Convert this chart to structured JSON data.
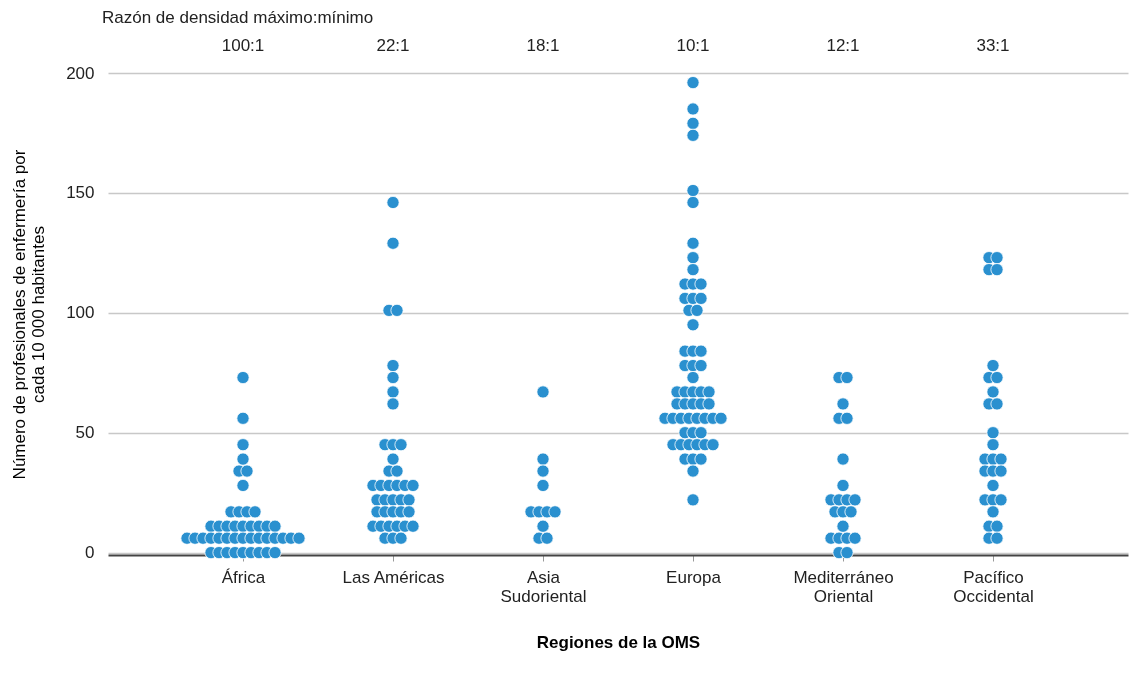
{
  "chart_data": {
    "type": "scatter",
    "xlabel": "Regiones de la OMS",
    "ylabel": "Número de profesionales de enfermería por cada 10 000 habitantes",
    "categories": [
      "África",
      "Las Américas",
      "Asia Sudoriental",
      "Europa",
      "Mediterráneo Oriental",
      "Pacífico Occidental"
    ],
    "ylim": [
      -1,
      200
    ],
    "yticks": [
      0,
      50,
      100,
      150,
      200
    ],
    "grid": "y",
    "legend": false,
    "marker": "circle",
    "annotations": [
      "Razón de densidad máximo:mínimo",
      "100:1",
      "22:1",
      "18:1",
      "10:1",
      "12:1",
      "33:1"
    ],
    "series": [
      {
        "color": "#2a90cf",
        "x": [
          "África",
          "África",
          "África",
          "África",
          "África",
          "África",
          "África",
          "África",
          "África",
          "África",
          "África",
          "África",
          "África",
          "África",
          "África",
          "África",
          "África",
          "África",
          "África",
          "África",
          "África",
          "África",
          "África",
          "África",
          "África",
          "África",
          "África",
          "África",
          "África",
          "África",
          "África",
          "África",
          "África",
          "África",
          "África",
          "África",
          "África",
          "África",
          "África",
          "África",
          "África",
          "África",
          "África",
          "África",
          "Las Américas",
          "Las Américas",
          "Las Américas",
          "Las Américas",
          "Las Américas",
          "Las Américas",
          "Las Américas",
          "Las Américas",
          "Las Américas",
          "Las Américas",
          "Las Américas",
          "Las Américas",
          "Las Américas",
          "Las Américas",
          "Las Américas",
          "Las Américas",
          "Las Américas",
          "Las Américas",
          "Las Américas",
          "Las Américas",
          "Las Américas",
          "Las Américas",
          "Las Américas",
          "Las Américas",
          "Las Américas",
          "Las Américas",
          "Las Américas",
          "Las Américas",
          "Las Américas",
          "Las Américas",
          "Las Américas",
          "Las Américas",
          "Las Américas",
          "Las Américas",
          "Las Américas",
          "Las Américas",
          "Las Américas",
          "Las Américas",
          "Las Américas",
          "Asia Sudoriental",
          "Asia Sudoriental",
          "Asia Sudoriental",
          "Asia Sudoriental",
          "Asia Sudoriental",
          "Asia Sudoriental",
          "Asia Sudoriental",
          "Asia Sudoriental",
          "Asia Sudoriental",
          "Asia Sudoriental",
          "Asia Sudoriental",
          "Europa",
          "Europa",
          "Europa",
          "Europa",
          "Europa",
          "Europa",
          "Europa",
          "Europa",
          "Europa",
          "Europa",
          "Europa",
          "Europa",
          "Europa",
          "Europa",
          "Europa",
          "Europa",
          "Europa",
          "Europa",
          "Europa",
          "Europa",
          "Europa",
          "Europa",
          "Europa",
          "Europa",
          "Europa",
          "Europa",
          "Europa",
          "Europa",
          "Europa",
          "Europa",
          "Europa",
          "Europa",
          "Europa",
          "Europa",
          "Europa",
          "Europa",
          "Europa",
          "Europa",
          "Europa",
          "Europa",
          "Europa",
          "Europa",
          "Europa",
          "Europa",
          "Europa",
          "Europa",
          "Europa",
          "Europa",
          "Europa",
          "Europa",
          "Europa",
          "Europa",
          "Europa",
          "Europa",
          "Europa",
          "Europa",
          "Europa",
          "Mediterráneo Oriental",
          "Mediterráneo Oriental",
          "Mediterráneo Oriental",
          "Mediterráneo Oriental",
          "Mediterráneo Oriental",
          "Mediterráneo Oriental",
          "Mediterráneo Oriental",
          "Mediterráneo Oriental",
          "Mediterráneo Oriental",
          "Mediterráneo Oriental",
          "Mediterráneo Oriental",
          "Mediterráneo Oriental",
          "Mediterráneo Oriental",
          "Mediterráneo Oriental",
          "Mediterráneo Oriental",
          "Mediterráneo Oriental",
          "Mediterráneo Oriental",
          "Mediterráneo Oriental",
          "Mediterráneo Oriental",
          "Mediterráneo Oriental",
          "Mediterráneo Oriental",
          "Pacífico Occidental",
          "Pacífico Occidental",
          "Pacífico Occidental",
          "Pacífico Occidental",
          "Pacífico Occidental",
          "Pacífico Occidental",
          "Pacífico Occidental",
          "Pacífico Occidental",
          "Pacífico Occidental",
          "Pacífico Occidental",
          "Pacífico Occidental",
          "Pacífico Occidental",
          "Pacífico Occidental",
          "Pacífico Occidental",
          "Pacífico Occidental",
          "Pacífico Occidental",
          "Pacífico Occidental",
          "Pacífico Occidental",
          "Pacífico Occidental",
          "Pacífico Occidental",
          "Pacífico Occidental",
          "Pacífico Occidental",
          "Pacífico Occidental",
          "Pacífico Occidental",
          "Pacífico Occidental",
          "Pacífico Occidental",
          "Pacífico Occidental"
        ],
        "values": [
          73,
          56,
          45,
          39,
          34,
          34,
          28,
          17,
          17,
          17,
          17,
          11,
          11,
          11,
          11,
          11,
          11,
          11,
          11,
          11,
          6,
          6,
          6,
          6,
          6,
          6,
          6,
          6,
          6,
          6,
          6,
          6,
          6,
          6,
          6,
          0,
          0,
          0,
          0,
          0,
          0,
          0,
          0,
          0,
          146,
          129,
          101,
          101,
          78,
          73,
          67,
          62,
          45,
          45,
          45,
          39,
          34,
          34,
          28,
          28,
          28,
          28,
          28,
          28,
          22,
          22,
          22,
          22,
          22,
          17,
          17,
          17,
          17,
          17,
          11,
          11,
          11,
          11,
          11,
          11,
          6,
          6,
          6,
          67,
          39,
          34,
          28,
          17,
          17,
          17,
          17,
          11,
          6,
          6,
          196,
          185,
          179,
          174,
          151,
          146,
          129,
          123,
          118,
          112,
          112,
          112,
          106,
          106,
          106,
          101,
          101,
          95,
          84,
          84,
          84,
          78,
          78,
          78,
          73,
          67,
          67,
          67,
          67,
          67,
          62,
          62,
          62,
          62,
          62,
          56,
          56,
          56,
          56,
          56,
          56,
          56,
          56,
          50,
          50,
          50,
          45,
          45,
          45,
          45,
          45,
          45,
          39,
          39,
          39,
          34,
          22,
          73,
          73,
          62,
          56,
          56,
          39,
          28,
          22,
          22,
          22,
          22,
          17,
          17,
          17,
          11,
          6,
          6,
          6,
          6,
          0,
          0,
          123,
          123,
          118,
          118,
          78,
          73,
          73,
          67,
          62,
          62,
          50,
          45,
          39,
          39,
          39,
          34,
          34,
          34,
          28,
          22,
          22,
          22,
          17,
          11,
          11,
          6,
          6
        ]
      }
    ]
  }
}
